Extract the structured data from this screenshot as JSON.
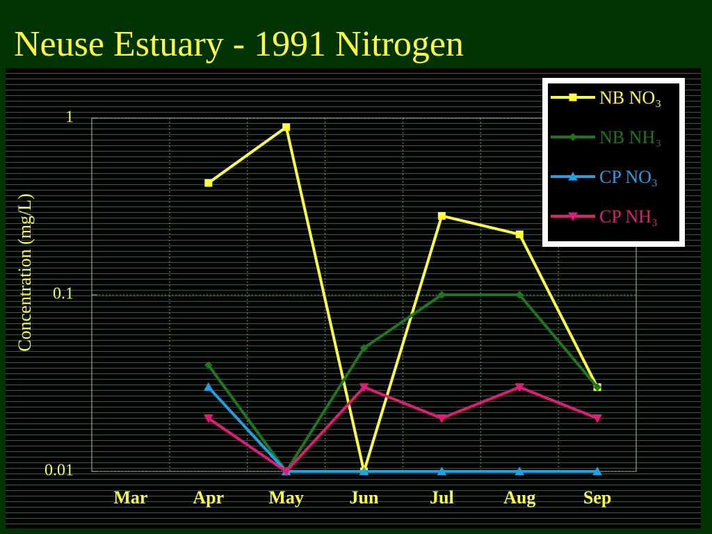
{
  "chart_data": {
    "type": "line",
    "title": "Neuse Estuary - 1991 Nitrogen",
    "y_label": "Concentration (mg/L)",
    "categories": [
      "Mar",
      "Apr",
      "May",
      "Jun",
      "Jul",
      "Aug",
      "Sep"
    ],
    "log_y": true,
    "grid": true,
    "legend": "upper right",
    "ylim": [
      0.01,
      1
    ],
    "yticks": [
      0.01,
      0.1,
      1
    ],
    "series": [
      {
        "name": "NB NO₃",
        "color": "#ffff33",
        "marker": "square",
        "values": [
          null,
          0.43,
          0.89,
          0.01,
          0.28,
          0.22,
          0.03
        ]
      },
      {
        "name": "NB NH₃",
        "color": "#1a7a1a",
        "marker": "diamond",
        "values": [
          null,
          0.04,
          0.01,
          0.05,
          0.1,
          0.1,
          0.03
        ]
      },
      {
        "name": "CP NO₃",
        "color": "#1aa3e6",
        "marker": "triangle",
        "values": [
          null,
          0.03,
          0.01,
          0.01,
          0.01,
          0.01,
          0.01
        ]
      },
      {
        "name": "CP NH₃",
        "color": "#e6197a",
        "marker": "triangle-down",
        "values": [
          null,
          0.02,
          0.01,
          0.03,
          0.02,
          0.03,
          0.02
        ]
      }
    ]
  }
}
